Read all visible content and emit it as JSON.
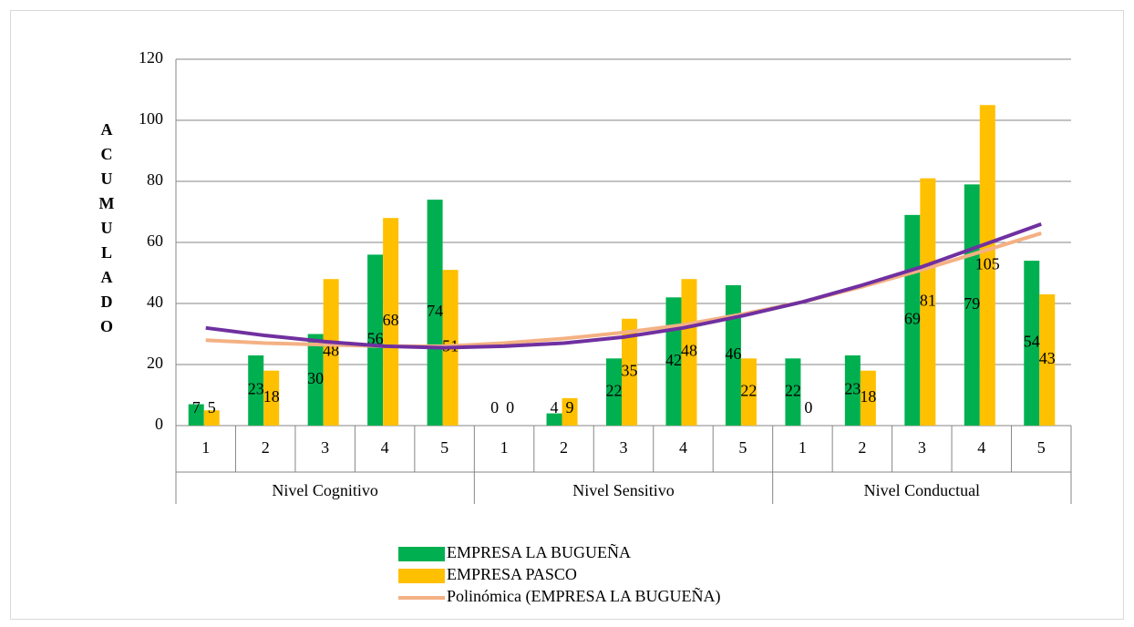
{
  "chart_data": {
    "type": "bar",
    "y_label": "ACUMULADO",
    "groups": [
      {
        "label": "Nivel Cognitivo",
        "categories": [
          "1",
          "2",
          "3",
          "4",
          "5"
        ]
      },
      {
        "label": "Nivel Sensitivo",
        "categories": [
          "1",
          "2",
          "3",
          "4",
          "5"
        ]
      },
      {
        "label": "Nivel Conductual",
        "categories": [
          "1",
          "2",
          "3",
          "4",
          "5"
        ]
      }
    ],
    "series": [
      {
        "name": "EMPRESA LA BUGUEÑA",
        "color": "#00b050",
        "values": [
          7,
          23,
          30,
          56,
          74,
          0,
          4,
          22,
          42,
          46,
          22,
          23,
          69,
          79,
          54
        ]
      },
      {
        "name": "EMPRESA PASCO",
        "color": "#ffc000",
        "values": [
          5,
          18,
          48,
          68,
          51,
          0,
          9,
          35,
          48,
          22,
          0,
          18,
          81,
          105,
          43
        ]
      }
    ],
    "trendlines": [
      {
        "name": "Polinómica (EMPRESA LA BUGUEÑA)",
        "color": "#f4b183",
        "values": [
          28,
          27,
          26.5,
          26,
          26,
          27,
          28.5,
          30.5,
          33,
          36.5,
          40.5,
          45.5,
          51,
          57,
          63
        ]
      },
      {
        "color": "#7030a0",
        "values": [
          32,
          29.5,
          27.5,
          26,
          25.5,
          26,
          27,
          29,
          32,
          36,
          40.5,
          46,
          52,
          59,
          66
        ]
      }
    ],
    "ylim": [
      0,
      120
    ],
    "yticks": [
      0,
      20,
      40,
      60,
      80,
      100,
      120
    ],
    "grid": true,
    "data_labels": true,
    "legend": "bottom"
  }
}
